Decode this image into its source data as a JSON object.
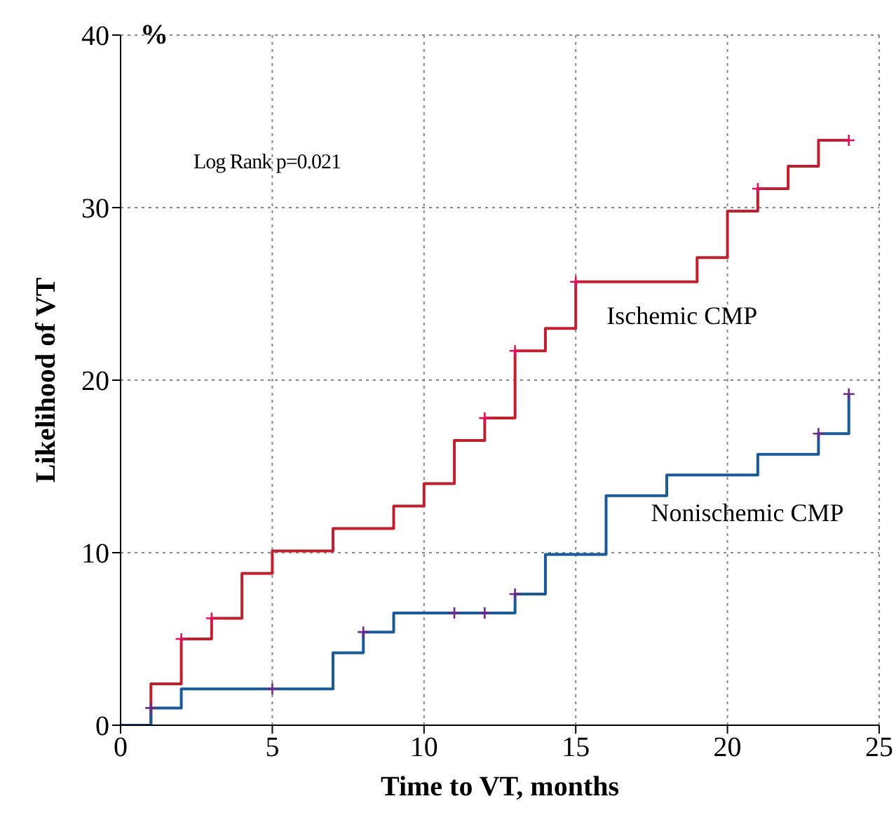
{
  "chart_data": {
    "type": "step",
    "xlabel": "Time to VT, months",
    "ylabel": "Likelihood of VT",
    "series": [
      {
        "name": "Ischemic CMP",
        "color": "#c0202e",
        "x": [
          0,
          1,
          2,
          3,
          4,
          5,
          7,
          9,
          10,
          11,
          12,
          13,
          14,
          15,
          19,
          20,
          21,
          22,
          23,
          24
        ],
        "values": [
          0,
          2.4,
          5.0,
          6.2,
          8.8,
          10.1,
          11.4,
          12.7,
          14.0,
          16.5,
          17.8,
          21.7,
          23.0,
          25.7,
          27.1,
          29.8,
          31.1,
          32.4,
          33.9,
          33.9
        ]
      },
      {
        "name": "Nonischemic CMP",
        "color": "#1a5a96",
        "x": [
          0,
          1,
          2,
          7,
          8,
          9,
          13,
          14,
          16,
          18,
          21,
          23,
          24
        ],
        "values": [
          0,
          1.0,
          2.1,
          4.2,
          5.4,
          6.5,
          7.6,
          9.9,
          13.3,
          14.5,
          15.7,
          16.9,
          19.2
        ]
      },
      {
        "type": "scatter",
        "marker": "cross",
        "color": "#e0105a",
        "x": [
          2,
          3,
          12,
          13,
          15,
          21,
          24
        ],
        "values": [
          5.0,
          6.2,
          17.8,
          21.7,
          25.7,
          31.1,
          33.9
        ]
      },
      {
        "type": "scatter",
        "marker": "cross",
        "color": "#6a2a8a",
        "x": [
          1,
          5,
          8,
          11,
          12,
          13,
          23,
          24
        ],
        "values": [
          1.0,
          2.1,
          5.4,
          6.5,
          6.5,
          7.6,
          16.9,
          19.2
        ]
      }
    ],
    "xlim": [
      0,
      25
    ],
    "xticks": [
      0,
      5,
      10,
      15,
      20,
      25
    ],
    "ylim": [
      0,
      40
    ],
    "yticks": [
      0,
      10,
      20,
      30,
      40
    ],
    "grid": true,
    "marker": "none",
    "line_style": "solid",
    "annotations": [
      "%",
      "Log Rank p=0.021"
    ]
  }
}
